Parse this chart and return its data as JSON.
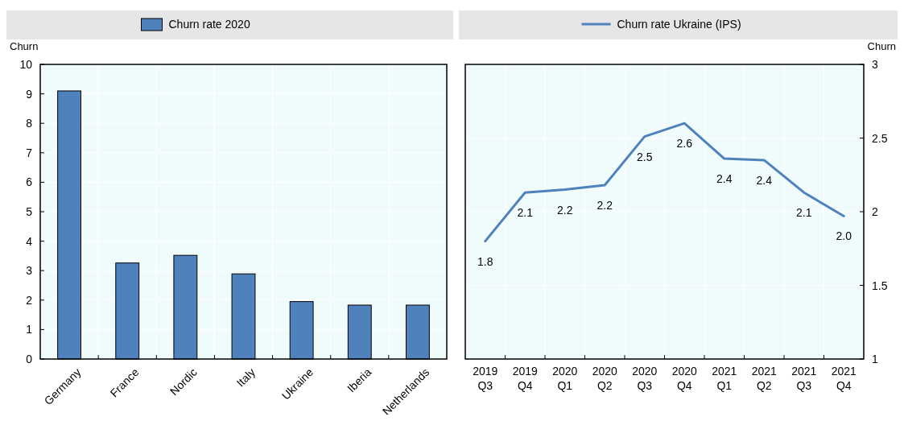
{
  "chart_data": [
    {
      "type": "bar",
      "ylabel": "Churn",
      "categories": [
        "Germany",
        "France",
        "Nordic",
        "Italy",
        "Ukraine",
        "Iberia",
        "Netherlands"
      ],
      "series": [
        {
          "name": "Churn rate 2020",
          "color": "#4f81bd",
          "values": [
            9.1,
            3.26,
            3.52,
            2.89,
            1.95,
            1.83,
            1.83
          ]
        }
      ],
      "ylim": [
        0,
        10
      ],
      "yticks": [
        0,
        1,
        2,
        3,
        4,
        5,
        6,
        7,
        8,
        9,
        10
      ],
      "grid": true,
      "legend": "top"
    },
    {
      "type": "line",
      "ylabel": "Churn",
      "categories": [
        "2019 Q3",
        "2019 Q4",
        "2020 Q1",
        "2020 Q2",
        "2020 Q3",
        "2020 Q4",
        "2021 Q1",
        "2021 Q2",
        "2021 Q3",
        "2021 Q4"
      ],
      "series": [
        {
          "name": "Churn rate Ukraine (IPS)",
          "color": "#4f81bd",
          "values": [
            1.8,
            2.13,
            2.15,
            2.18,
            2.51,
            2.6,
            2.36,
            2.35,
            2.13,
            1.97
          ],
          "value_labels": [
            "1.8",
            "2.1",
            "2.2",
            "2.2",
            "2.5",
            "2.6",
            "2.4",
            "2.4",
            "2.1",
            "2.0"
          ]
        }
      ],
      "ylim": [
        1,
        3
      ],
      "yticks": [
        1,
        1.5,
        2,
        2.5,
        3
      ],
      "grid": true,
      "legend": "top",
      "marker": "none"
    }
  ]
}
